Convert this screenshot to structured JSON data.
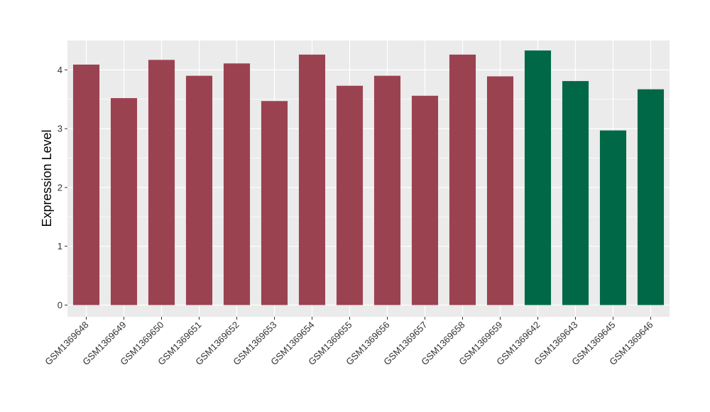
{
  "chart_data": {
    "type": "bar",
    "title": "",
    "xlabel": "",
    "ylabel": "Expression Level",
    "ylim": [
      -0.2,
      4.5
    ],
    "yticks": [
      0,
      1,
      2,
      3,
      4
    ],
    "ytick_labels": [
      "0",
      "1",
      "2",
      "3",
      "4"
    ],
    "grid": true,
    "legend": "none",
    "categories": [
      "GSM1369648",
      "GSM1369649",
      "GSM1369650",
      "GSM1369651",
      "GSM1369652",
      "GSM1369653",
      "GSM1369654",
      "GSM1369655",
      "GSM1369656",
      "GSM1369657",
      "GSM1369658",
      "GSM1369659",
      "GSM1369642",
      "GSM1369643",
      "GSM1369645",
      "GSM1369646"
    ],
    "values": [
      4.09,
      3.52,
      4.17,
      3.9,
      4.11,
      3.47,
      4.26,
      3.73,
      3.9,
      3.56,
      4.26,
      3.89,
      4.33,
      3.81,
      2.97,
      3.67
    ],
    "bar_colors": [
      "#9b4251",
      "#9b4251",
      "#9b4251",
      "#9b4251",
      "#9b4251",
      "#9b4251",
      "#9b4251",
      "#9b4251",
      "#9b4251",
      "#9b4251",
      "#9b4251",
      "#9b4251",
      "#006846",
      "#006846",
      "#006846",
      "#006846"
    ],
    "panel_background": "#ebebeb",
    "grid_color": "#ffffff"
  }
}
